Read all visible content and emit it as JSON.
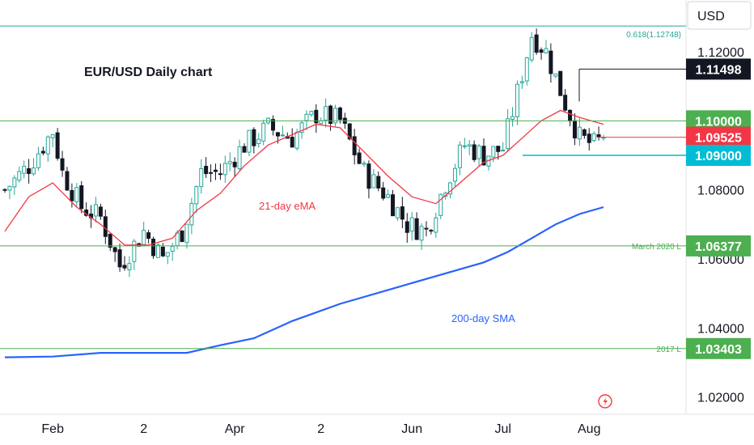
{
  "title": "EUR/USD Daily chart",
  "currency": "USD",
  "colors": {
    "up_candle": "#26a69a",
    "down_candle": "#131722",
    "ema": "#f23645",
    "sma": "#2962ff",
    "level_green": "#4caf50",
    "level_blue": "#00bcd4",
    "price_red": "#f23645",
    "price_black": "#131722",
    "fib": "#26a69a"
  },
  "chart_data": {
    "type": "candlestick",
    "y_axis": {
      "min": 1.015,
      "max": 1.135,
      "ticks": [
        {
          "value": 1.12,
          "label": "1.12000"
        },
        {
          "value": 1.08,
          "label": "1.08000"
        },
        {
          "value": 1.06,
          "label": "1.06000"
        },
        {
          "value": 1.04,
          "label": "1.04000"
        },
        {
          "value": 1.02,
          "label": "1.02000"
        }
      ]
    },
    "x_axis": {
      "ticks": [
        {
          "label": "Feb",
          "index": 10
        },
        {
          "label": "2",
          "index": 29
        },
        {
          "label": "Apr",
          "index": 48
        },
        {
          "label": "2",
          "index": 66
        },
        {
          "label": "Jun",
          "index": 85
        },
        {
          "label": "Jul",
          "index": 104
        },
        {
          "label": "Aug",
          "index": 122
        }
      ]
    },
    "levels": [
      {
        "name": "fib-0618",
        "value": 1.12748,
        "label": "0.618(1.12748)",
        "badge": "",
        "color": "#26a69a"
      },
      {
        "name": "last-high",
        "value": 1.11498,
        "label": "",
        "badge": "1.11498",
        "color": "#131722"
      },
      {
        "name": "level-110",
        "value": 1.1,
        "label": "",
        "badge": "1.10000",
        "color": "#4caf50"
      },
      {
        "name": "current-price",
        "value": 1.09525,
        "label": "",
        "badge": "1.09525",
        "color": "#f23645"
      },
      {
        "name": "level-109",
        "value": 1.09,
        "label": "",
        "badge": "1.09000",
        "color": "#00bcd4"
      },
      {
        "name": "march-2020-low",
        "value": 1.06377,
        "label": "March 2020 L",
        "badge": "1.06377",
        "color": "#4caf50"
      },
      {
        "name": "low-2017",
        "value": 1.03403,
        "label": "2017 L",
        "badge": "1.03403",
        "color": "#4caf50"
      }
    ],
    "annotations": [
      {
        "name": "ema-label",
        "text": "21-day eMA",
        "color": "#f23645"
      },
      {
        "name": "sma-label",
        "text": "200-day SMA",
        "color": "#2962ff"
      }
    ],
    "close_path": [
      [
        0,
        1.08
      ],
      [
        5,
        1.087
      ],
      [
        10,
        1.097
      ],
      [
        12,
        1.085
      ],
      [
        16,
        1.075
      ],
      [
        20,
        1.072
      ],
      [
        24,
        1.058
      ],
      [
        29,
        1.068
      ],
      [
        33,
        1.06
      ],
      [
        37,
        1.068
      ],
      [
        41,
        1.085
      ],
      [
        45,
        1.085
      ],
      [
        50,
        1.093
      ],
      [
        55,
        1.098
      ],
      [
        60,
        1.095
      ],
      [
        65,
        1.102
      ],
      [
        70,
        1.1
      ],
      [
        75,
        1.085
      ],
      [
        80,
        1.078
      ],
      [
        84,
        1.07
      ],
      [
        88,
        1.068
      ],
      [
        92,
        1.082
      ],
      [
        96,
        1.093
      ],
      [
        100,
        1.09
      ],
      [
        104,
        1.092
      ],
      [
        107,
        1.108
      ],
      [
        110,
        1.125
      ],
      [
        113,
        1.12
      ],
      [
        117,
        1.105
      ],
      [
        120,
        1.095
      ],
      [
        123,
        1.093
      ],
      [
        125,
        1.0952
      ]
    ],
    "ema_points": [
      [
        0,
        1.068
      ],
      [
        5,
        1.078
      ],
      [
        10,
        1.082
      ],
      [
        15,
        1.075
      ],
      [
        20,
        1.07
      ],
      [
        25,
        1.064
      ],
      [
        30,
        1.064
      ],
      [
        35,
        1.066
      ],
      [
        40,
        1.074
      ],
      [
        45,
        1.079
      ],
      [
        50,
        1.087
      ],
      [
        55,
        1.093
      ],
      [
        60,
        1.096
      ],
      [
        65,
        1.099
      ],
      [
        70,
        1.098
      ],
      [
        75,
        1.091
      ],
      [
        80,
        1.084
      ],
      [
        85,
        1.078
      ],
      [
        90,
        1.076
      ],
      [
        95,
        1.082
      ],
      [
        100,
        1.088
      ],
      [
        104,
        1.09
      ],
      [
        108,
        1.095
      ],
      [
        112,
        1.1
      ],
      [
        116,
        1.103
      ],
      [
        120,
        1.101
      ],
      [
        125,
        1.099
      ]
    ],
    "sma_points": [
      [
        0,
        1.0315
      ],
      [
        10,
        1.0317
      ],
      [
        20,
        1.0328
      ],
      [
        30,
        1.0328
      ],
      [
        38,
        1.0328
      ],
      [
        45,
        1.035
      ],
      [
        52,
        1.037
      ],
      [
        60,
        1.042
      ],
      [
        70,
        1.047
      ],
      [
        80,
        1.051
      ],
      [
        90,
        1.055
      ],
      [
        100,
        1.059
      ],
      [
        105,
        1.062
      ],
      [
        110,
        1.066
      ],
      [
        115,
        1.07
      ],
      [
        120,
        1.073
      ],
      [
        125,
        1.075
      ]
    ]
  }
}
